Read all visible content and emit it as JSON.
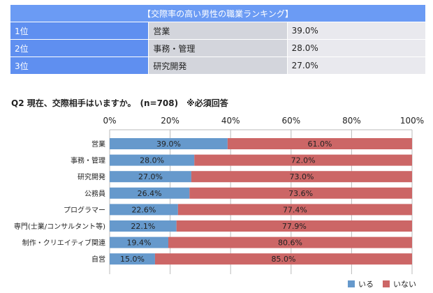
{
  "ranking": {
    "title": "【交際率の高い男性の職業ランキング】",
    "rows": [
      {
        "rank": "1位",
        "job": "営業",
        "pct": "39.0%"
      },
      {
        "rank": "2位",
        "job": "事務・管理",
        "pct": "28.0%"
      },
      {
        "rank": "3位",
        "job": "研究開発",
        "pct": "27.0%"
      }
    ]
  },
  "question": "Q2 現在、交際相手はいますか。　(n=708)　※必須回答",
  "colors": {
    "iru": "#6699cc",
    "inai": "#cc6666"
  },
  "chart_data": {
    "type": "bar",
    "orientation": "horizontal",
    "stacked": true,
    "x_ticks": [
      "0%",
      "20%",
      "40%",
      "60%",
      "80%",
      "100%"
    ],
    "xlim": [
      0,
      100
    ],
    "categories": [
      "営業",
      "事務・管理",
      "研究開発",
      "公務員",
      "プログラマー",
      "専門(士業/コンサルタント等)",
      "制作・クリエイティブ関連",
      "自営"
    ],
    "series": [
      {
        "name": "いる",
        "color": "#6699cc",
        "values": [
          39.0,
          28.0,
          27.0,
          26.4,
          22.6,
          22.1,
          19.4,
          15.0
        ],
        "labels": [
          "39.0%",
          "28.0%",
          "27.0%",
          "26.4%",
          "22.6%",
          "22.1%",
          "19.4%",
          "15.0%"
        ]
      },
      {
        "name": "いない",
        "color": "#cc6666",
        "values": [
          61.0,
          72.0,
          73.0,
          73.6,
          77.4,
          77.9,
          80.6,
          85.0
        ],
        "labels": [
          "61.0%",
          "72.0%",
          "73.0%",
          "73.6%",
          "77.4%",
          "77.9%",
          "80.6%",
          "85.0%"
        ]
      }
    ],
    "legend_position": "bottom-right"
  }
}
